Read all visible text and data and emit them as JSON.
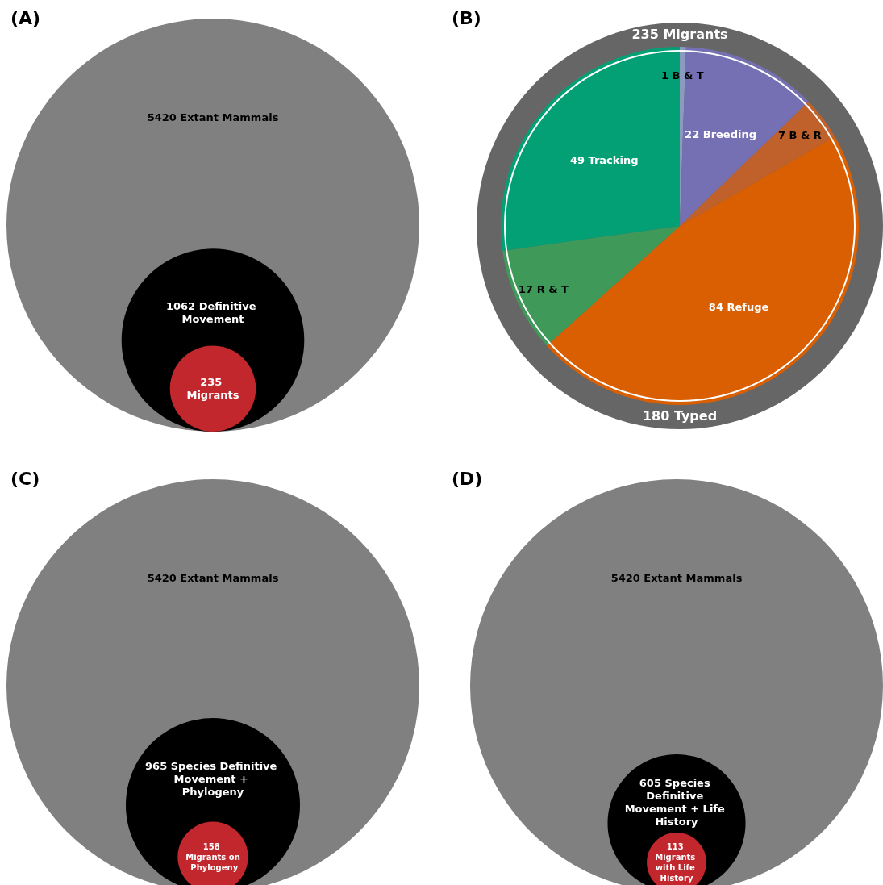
{
  "chart_data": [
    {
      "type": "other",
      "title": "(A)",
      "values": [
        5420,
        1062,
        235
      ],
      "value_labels": [
        "5420 Extant Mammals",
        "1062 Definitive Movement",
        "235 Migrants"
      ],
      "colors": [
        "#808080",
        "#000000",
        "#c1272d"
      ]
    },
    {
      "type": "pie",
      "title": "(B)",
      "values": [
        1,
        22,
        7,
        84,
        17,
        49
      ],
      "value_labels": [
        "1 B & T",
        "22 Breeding",
        "7 B & R",
        "84 Refuge",
        "17 R & T",
        "49 Tracking"
      ],
      "colors": [
        "#8a9bbf",
        "#7570b3",
        "#c0602a",
        "#d95f02",
        "#3f9a5a",
        "#04a075"
      ],
      "annotations": [
        "235 Migrants",
        "180 Typed"
      ]
    },
    {
      "type": "other",
      "title": "(C)",
      "values": [
        5420,
        965,
        158
      ],
      "value_labels": [
        "5420 Extant Mammals",
        "965 Species Definitive Movement + Phylogeny",
        "158 Migrants on Phylogeny"
      ],
      "colors": [
        "#808080",
        "#000000",
        "#c1272d"
      ]
    },
    {
      "type": "other",
      "title": "(D)",
      "values": [
        5420,
        605,
        113
      ],
      "value_labels": [
        "5420 Extant Mammals",
        "605 Species Definitive Movement + Life History",
        "113 Migrants with Life History"
      ],
      "colors": [
        "#808080",
        "#000000",
        "#c1272d"
      ]
    }
  ]
}
